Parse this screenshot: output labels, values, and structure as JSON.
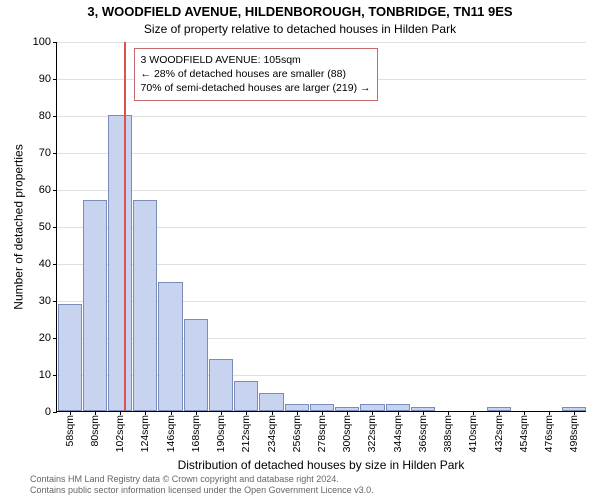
{
  "title_main": "3, WOODFIELD AVENUE, HILDENBOROUGH, TONBRIDGE, TN11 9ES",
  "title_sub": "Size of property relative to detached houses in Hilden Park",
  "y_axis_title": "Number of detached properties",
  "x_axis_title": "Distribution of detached houses by size in Hilden Park",
  "chart": {
    "type": "bar",
    "ylim": [
      0,
      100
    ],
    "yticks": [
      0,
      10,
      20,
      30,
      40,
      50,
      60,
      70,
      80,
      90,
      100
    ],
    "grid_color": "#e0e0e0",
    "bar_fill": "#c8d4ef",
    "bar_border": "#7a8db8",
    "background": "#ffffff",
    "marker_color": "#d9534f",
    "categories": [
      "58sqm",
      "80sqm",
      "102sqm",
      "124sqm",
      "146sqm",
      "168sqm",
      "190sqm",
      "212sqm",
      "234sqm",
      "256sqm",
      "278sqm",
      "300sqm",
      "322sqm",
      "344sqm",
      "366sqm",
      "388sqm",
      "410sqm",
      "432sqm",
      "454sqm",
      "476sqm",
      "498sqm"
    ],
    "values": [
      29,
      57,
      80,
      57,
      35,
      25,
      14,
      8,
      5,
      2,
      2,
      1,
      2,
      2,
      1,
      0,
      0,
      1,
      0,
      0,
      1
    ],
    "marker_value": 105
  },
  "annotation": {
    "line1": "3 WOODFIELD AVENUE: 105sqm",
    "line2": "← 28% of detached houses are smaller (88)",
    "line3": "70% of semi-detached houses are larger (219) →"
  },
  "attribution": {
    "line1": "Contains HM Land Registry data © Crown copyright and database right 2024.",
    "line2": "Contains public sector information licensed under the Open Government Licence v3.0."
  }
}
